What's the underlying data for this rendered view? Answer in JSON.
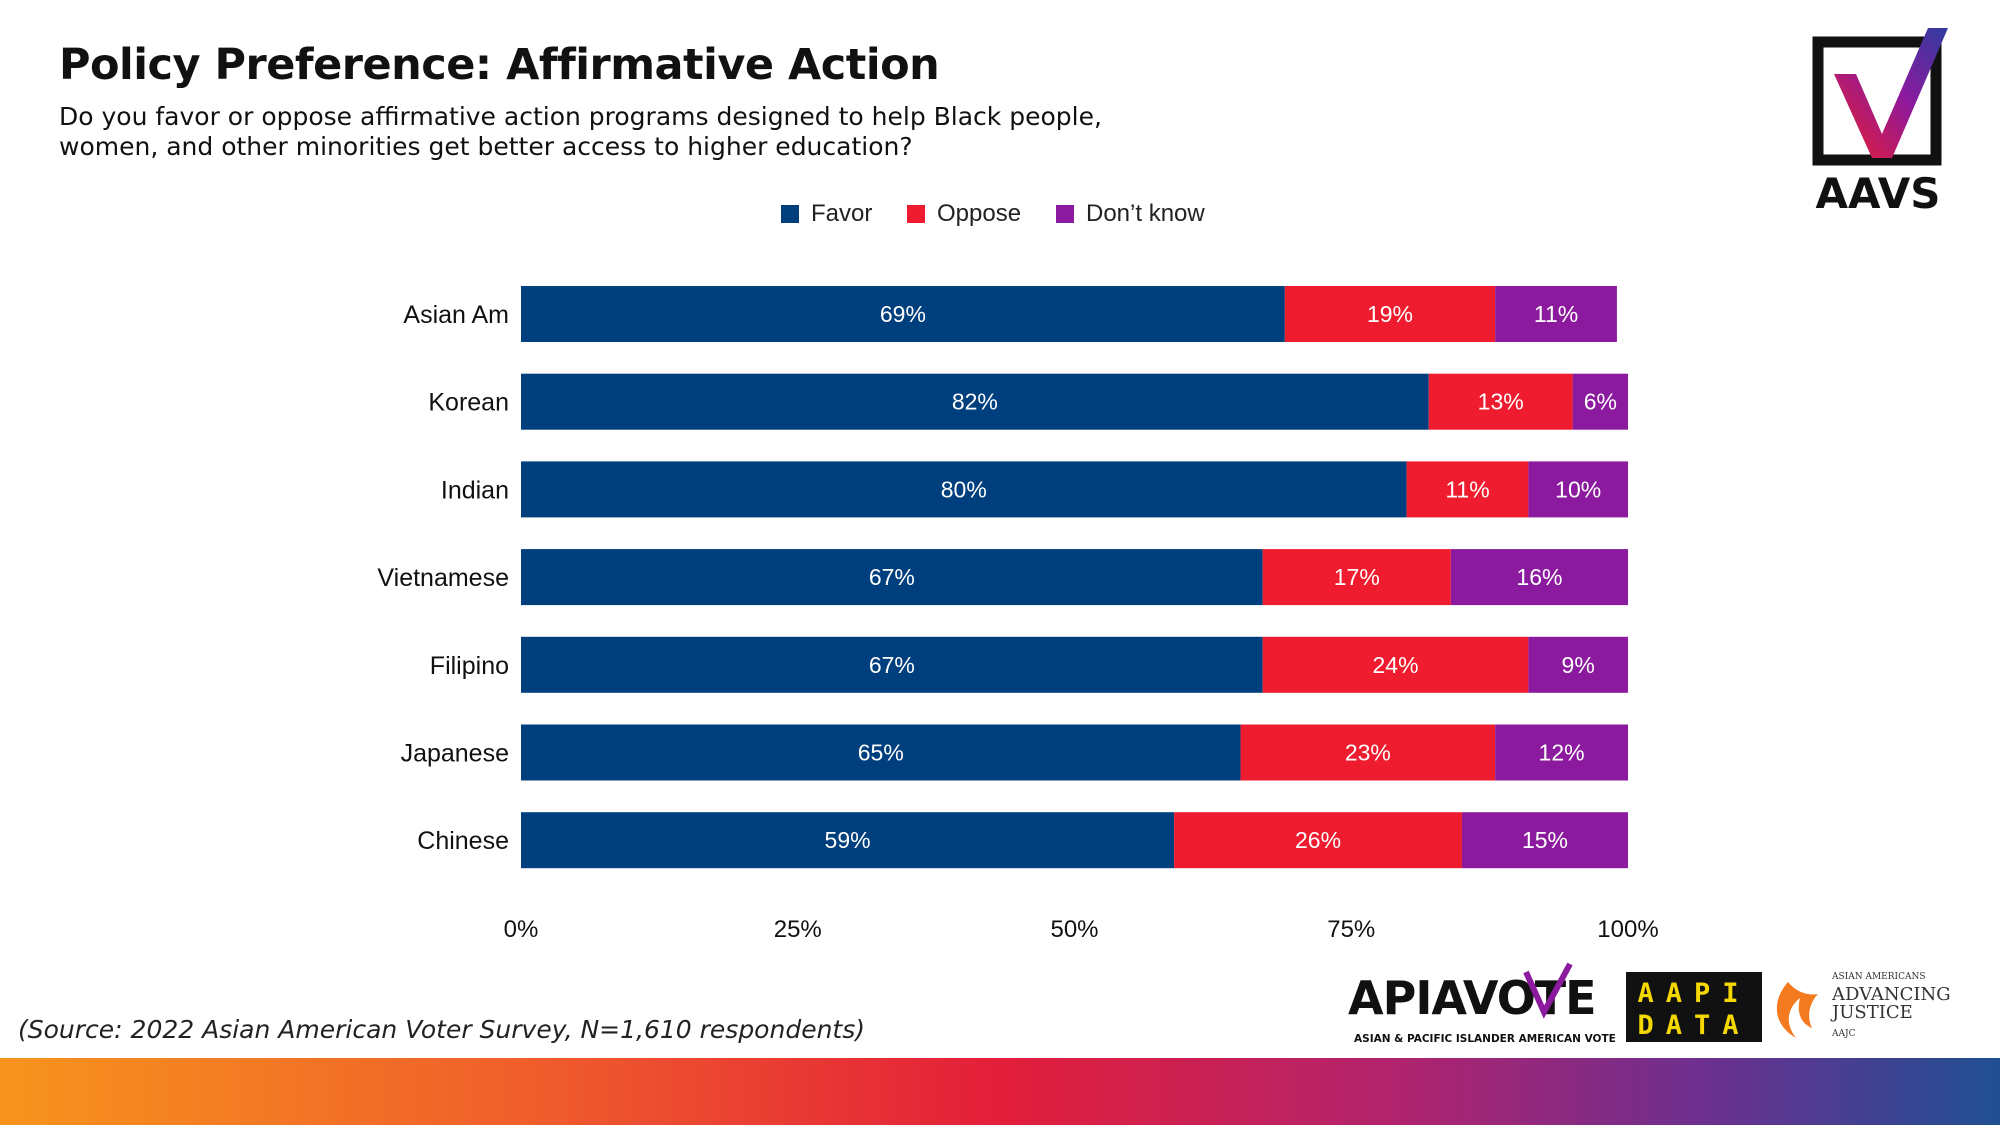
{
  "header": {
    "title": "Policy Preference: Affirmative Action",
    "subtitle_line1": "Do you favor or oppose affirmative action programs designed to help Black people,",
    "subtitle_line2": "women, and other minorities get better access to higher education?"
  },
  "logos": {
    "aavs": "AAVS",
    "apiavote_main": "APIAVOTE",
    "apiavote_tagline": "ASIAN & PACIFIC ISLANDER AMERICAN VOTE",
    "aapi_data_line1": "AAPI",
    "aapi_data_line2": "DATA",
    "aajc_small": "ASIAN AMERICANS",
    "aajc_line1": "ADVANCING",
    "aajc_line2": "JUSTICE",
    "aajc_abbr": "AAJC"
  },
  "source": "(Source: 2022 Asian American Voter Survey, N=1,610 respondents)",
  "colors": {
    "favor": "#003f7d",
    "oppose": "#ee1c2e",
    "dont_know": "#8b1a9e"
  },
  "chart_data": {
    "type": "bar",
    "orientation": "horizontal",
    "stacked": true,
    "legend_position": "top-center",
    "grid": false,
    "xlim": [
      0,
      100
    ],
    "x_ticks": [
      "0%",
      "25%",
      "50%",
      "75%",
      "100%"
    ],
    "categories": [
      "Asian Am",
      "Korean",
      "Indian",
      "Vietnamese",
      "Filipino",
      "Japanese",
      "Chinese"
    ],
    "series": [
      {
        "name": "Favor",
        "values": [
          69,
          82,
          80,
          67,
          67,
          65,
          59
        ],
        "labels": [
          "69%",
          "82%",
          "80%",
          "67%",
          "67%",
          "65%",
          "59%"
        ]
      },
      {
        "name": "Oppose",
        "values": [
          19,
          13,
          11,
          17,
          24,
          23,
          26
        ],
        "labels": [
          "19%",
          "13%",
          "11%",
          "17%",
          "24%",
          "23%",
          "26%"
        ]
      },
      {
        "name": "Don’t know",
        "values": [
          11,
          6,
          10,
          16,
          9,
          12,
          15
        ],
        "labels": [
          "11%",
          "6%",
          "10%",
          "16%",
          "9%",
          "12%",
          "15%"
        ]
      }
    ]
  }
}
